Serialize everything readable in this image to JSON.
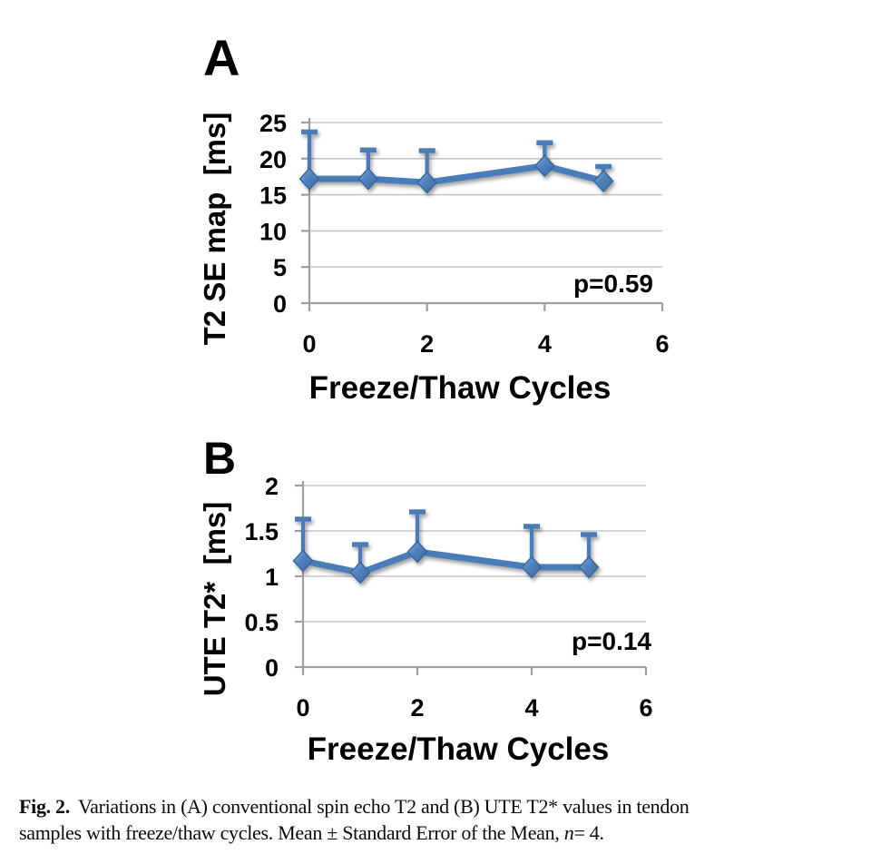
{
  "caption": {
    "label": "Fig. 2.",
    "line1": "Variations in (A) conventional spin echo T2 and (B) UTE T2* values in tendon",
    "line2_pre": "samples with freeze/thaw cycles. Mean ± Standard Error of the Mean, ",
    "line2_italic": "n",
    "line2_post": "= 4."
  },
  "chart_data": [
    {
      "id": "A",
      "type": "line",
      "panel_label": "A",
      "title": "",
      "xlabel": "Freeze/Thaw Cycles",
      "ylabel": "T2 SE map  [ms]",
      "annotation": "p=0.59",
      "x": [
        0,
        1,
        2,
        4,
        5
      ],
      "y": [
        17.2,
        17.2,
        16.7,
        19.0,
        16.9
      ],
      "error_up": [
        6.5,
        4.0,
        4.4,
        3.2,
        2.0
      ],
      "xlim": [
        0,
        6
      ],
      "ylim": [
        0,
        25
      ],
      "xticks": [
        0,
        2,
        4,
        6
      ],
      "yticks": [
        0,
        5,
        10,
        15,
        20,
        25
      ],
      "grid": true,
      "legend": "none",
      "series_color": "#4a7cb8",
      "grid_color": "#c6c6c6",
      "axis_color": "#9e9e9e"
    },
    {
      "id": "B",
      "type": "line",
      "panel_label": "B",
      "title": "",
      "xlabel": "Freeze/Thaw Cycles",
      "ylabel": "UTE T2*  [ms]",
      "annotation": "p=0.14",
      "x": [
        0,
        1,
        2,
        4,
        5
      ],
      "y": [
        1.17,
        1.04,
        1.27,
        1.1,
        1.1
      ],
      "error_up": [
        0.46,
        0.31,
        0.44,
        0.45,
        0.36
      ],
      "xlim": [
        0,
        6
      ],
      "ylim": [
        0,
        2
      ],
      "xticks": [
        0,
        2,
        4,
        6
      ],
      "yticks": [
        0,
        0.5,
        1,
        1.5,
        2
      ],
      "grid": true,
      "legend": "none",
      "series_color": "#4a7cb8",
      "grid_color": "#c6c6c6",
      "axis_color": "#9e9e9e"
    }
  ]
}
